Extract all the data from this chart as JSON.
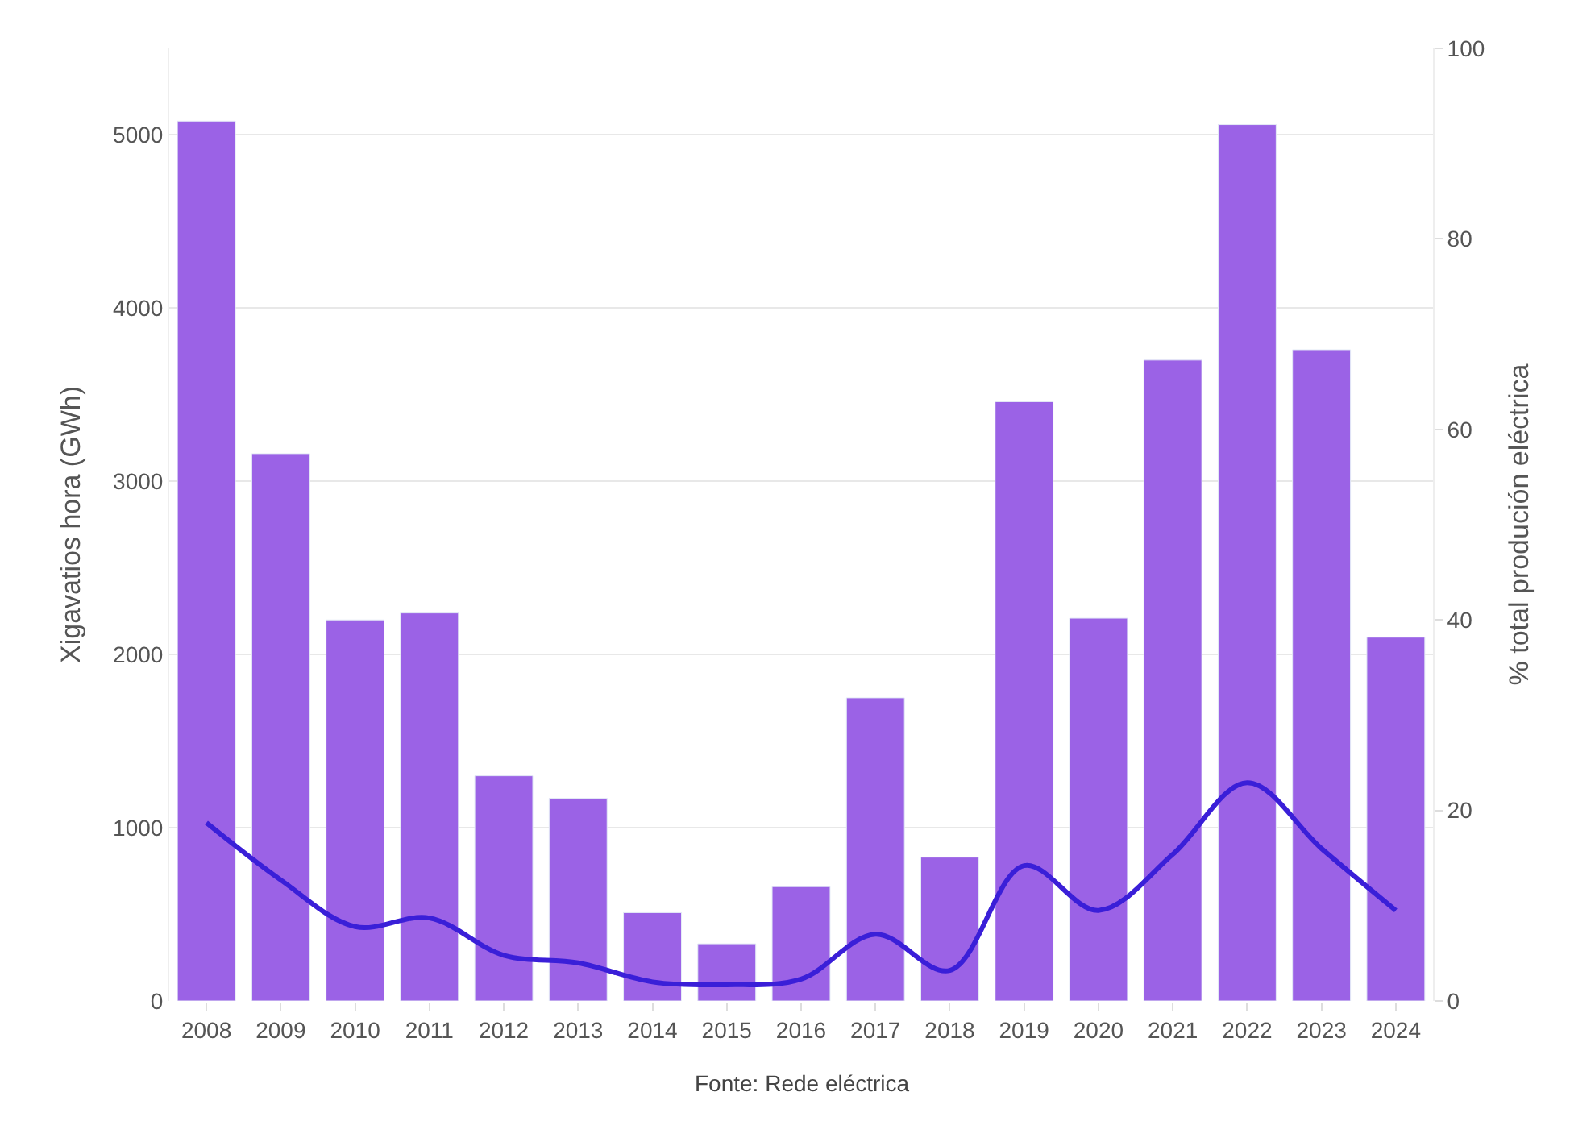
{
  "chart_data": {
    "type": "bar",
    "categories": [
      "2008",
      "2009",
      "2010",
      "2011",
      "2012",
      "2013",
      "2014",
      "2015",
      "2016",
      "2017",
      "2018",
      "2019",
      "2020",
      "2021",
      "2022",
      "2023",
      "2024"
    ],
    "series": [
      {
        "color": "#9b62e6",
        "values": [
          5080,
          3160,
          2200,
          2240,
          1300,
          1170,
          510,
          330,
          660,
          1750,
          830,
          3460,
          2210,
          3700,
          5060,
          3760,
          2100
        ]
      },
      {
        "type": "line",
        "axis": "y2",
        "color": "#3a1fd8",
        "values": [
          18.7,
          12.7,
          7.8,
          8.7,
          4.8,
          4.0,
          2.0,
          1.7,
          2.3,
          7.0,
          3.2,
          14.2,
          9.5,
          15.4,
          22.9,
          16.0,
          9.5
        ]
      }
    ],
    "ylabel": "Xigavatios hora (GWh)",
    "y2label": "% total produción eléctrica",
    "ylim": [
      0,
      5500
    ],
    "yticks": [
      0,
      1000,
      2000,
      3000,
      4000,
      5000
    ],
    "y2lim": [
      0,
      100
    ],
    "y2ticks": [
      0,
      20,
      40,
      60,
      80,
      100
    ],
    "grid": "y",
    "legend": false,
    "marker": "none",
    "line_style": "solid",
    "annotations": [
      "Fonte: Rede eléctrica"
    ]
  }
}
